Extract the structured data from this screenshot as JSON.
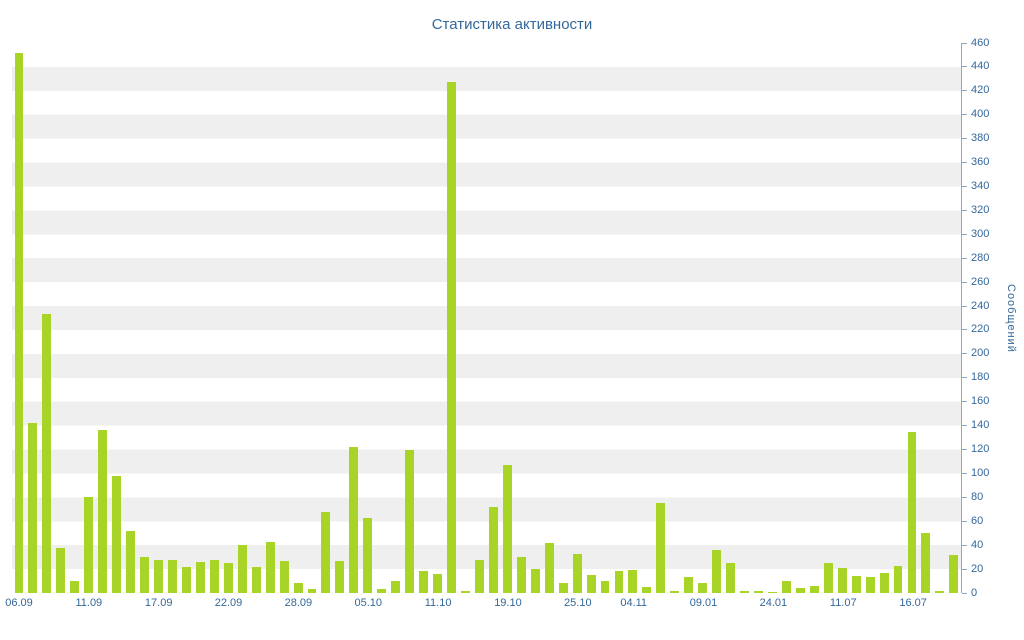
{
  "chart_data": {
    "type": "bar",
    "title": "Статистика активности",
    "xlabel": "",
    "ylabel": "Сообщений",
    "ylim": [
      0,
      460
    ],
    "ytick_step": 20,
    "grid": "striped-horizontal",
    "legend": "none",
    "bar_color": "#a7d426",
    "text_color": "#34679a",
    "axis_color": "#8fa9c4",
    "stripe_color": "#efefef",
    "values": [
      452,
      142,
      233,
      38,
      10,
      80,
      136,
      98,
      52,
      30,
      28,
      28,
      22,
      26,
      28,
      25,
      40,
      22,
      43,
      27,
      8,
      3,
      68,
      27,
      122,
      63,
      3,
      10,
      120,
      18,
      16,
      427,
      2,
      28,
      72,
      107,
      30,
      20,
      42,
      8,
      33,
      15,
      10,
      18,
      19,
      5,
      75,
      2,
      13,
      8,
      36,
      25,
      2,
      2,
      1,
      10,
      4,
      6,
      25,
      21,
      14,
      13,
      17,
      23,
      135,
      50,
      2,
      32
    ],
    "x_labels": [
      {
        "index": 0,
        "label": "06.09"
      },
      {
        "index": 5,
        "label": "11.09"
      },
      {
        "index": 10,
        "label": "17.09"
      },
      {
        "index": 15,
        "label": "22.09"
      },
      {
        "index": 20,
        "label": "28.09"
      },
      {
        "index": 25,
        "label": "05.10"
      },
      {
        "index": 30,
        "label": "11.10"
      },
      {
        "index": 35,
        "label": "19.10"
      },
      {
        "index": 40,
        "label": "25.10"
      },
      {
        "index": 44,
        "label": "04.11"
      },
      {
        "index": 49,
        "label": "09.01"
      },
      {
        "index": 54,
        "label": "24.01"
      },
      {
        "index": 59,
        "label": "11.07"
      },
      {
        "index": 64,
        "label": "16.07"
      }
    ]
  }
}
